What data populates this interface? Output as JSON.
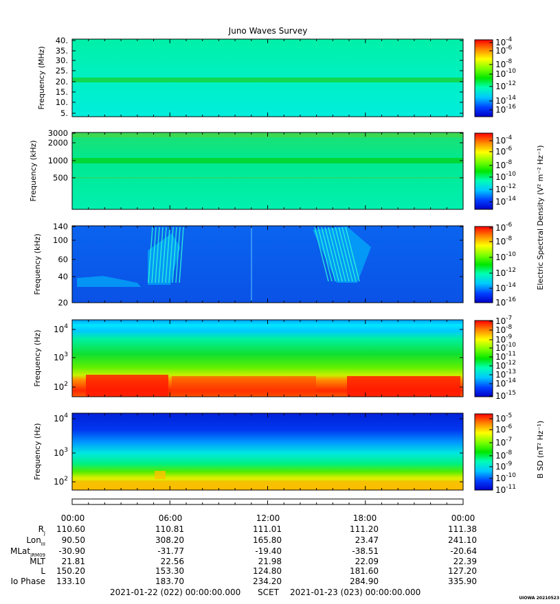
{
  "title": "Juno Waves Survey",
  "time_axis": {
    "ticks": [
      "00:00",
      "06:00",
      "12:00",
      "18:00",
      "00:00"
    ]
  },
  "ephemeris": {
    "rows": [
      {
        "label": "R",
        "sub": "J",
        "values": [
          "110.60",
          "110.81",
          "111.01",
          "111.20",
          "111.38"
        ]
      },
      {
        "label": "Lon",
        "sub": "III",
        "values": [
          "90.50",
          "308.20",
          "165.80",
          "23.47",
          "241.10"
        ]
      },
      {
        "label": "MLat",
        "sub": "JRM09",
        "values": [
          "-30.90",
          "-31.77",
          "-19.40",
          "-38.51",
          "-20.64"
        ]
      },
      {
        "label": "MLT",
        "sub": "",
        "values": [
          "21.81",
          "22.56",
          "21.98",
          "22.09",
          "22.39"
        ]
      },
      {
        "label": "L",
        "sub": "",
        "values": [
          "150.20",
          "153.30",
          "124.80",
          "181.60",
          "127.20"
        ]
      },
      {
        "label": "Io Phase",
        "sub": "",
        "values": [
          "133.10",
          "183.70",
          "234.20",
          "284.90",
          "335.90"
        ]
      }
    ]
  },
  "footer": {
    "start": "2021-01-22 (022) 00:00:00.000",
    "scet": "SCET",
    "end": "2021-01-23 (023) 00:00:00.000",
    "stamp": "UIOWA 20210523"
  },
  "colorbar_labels": {
    "electric": "Electric Spectral Density (V² m⁻² Hz⁻¹)",
    "magnetic": "B SD (nT² Hz⁻¹)"
  },
  "chart_data": [
    {
      "type": "heatmap",
      "ylabel": "Frequency (MHz)",
      "y_ticks": [
        "40.",
        "35.",
        "30.",
        "25.",
        "20.",
        "15.",
        "10.",
        "5."
      ],
      "y_tick_values": [
        40,
        35,
        30,
        25,
        20,
        15,
        10,
        5
      ],
      "ylim": [
        3,
        41
      ],
      "colorbar": {
        "ticks": [
          "-4",
          "-6",
          "-8",
          "-10",
          "-12",
          "-14",
          "-16"
        ],
        "exponents": [
          -4,
          -6,
          -8,
          -10,
          -12,
          -14,
          -16
        ],
        "range": [
          -17,
          -4
        ],
        "base": "10"
      },
      "feature": "uniform background with enhanced band near 21 MHz"
    },
    {
      "type": "heatmap",
      "ylabel": "Frequency (kHz)",
      "y_ticks": [
        "3000",
        "2000",
        "1000",
        "500"
      ],
      "y_tick_values": [
        3000,
        2000,
        1000,
        500
      ],
      "yscale": "log",
      "colorbar": {
        "ticks": [
          "-4",
          "-6",
          "-8",
          "-10",
          "-12",
          "-14"
        ],
        "exponents": [
          -4,
          -6,
          -8,
          -10,
          -12,
          -14
        ],
        "range": [
          -15,
          -3.4
        ],
        "base": "10"
      },
      "feature": "uniform background with enhanced band near 1000 kHz"
    },
    {
      "type": "heatmap",
      "ylabel": "Frequency (kHz)",
      "y_ticks": [
        "140",
        "100",
        "60",
        "40",
        "20"
      ],
      "y_tick_values": [
        140,
        100,
        60,
        40,
        20
      ],
      "yscale": "log",
      "colorbar": {
        "ticks": [
          "-6",
          "-8",
          "-10",
          "-12",
          "-14",
          "-16"
        ],
        "exponents": [
          -6,
          -8,
          -10,
          -12,
          -14,
          -16
        ],
        "range": [
          -17,
          -5.8
        ],
        "base": "10"
      },
      "feature": "emission bursts near 05:30 and 17:00 UT"
    },
    {
      "type": "heatmap",
      "ylabel": "Frequency (Hz)",
      "y_ticks": [
        "4",
        "3",
        "2"
      ],
      "y_tick_values": [
        10000,
        1000,
        100
      ],
      "yscale": "log",
      "colorbar": {
        "ticks": [
          "-7",
          "-8",
          "-9",
          "-10",
          "-11",
          "-12",
          "-13",
          "-14",
          "-15"
        ],
        "exponents": [
          -7,
          -8,
          -9,
          -10,
          -11,
          -12,
          -13,
          -14,
          -15
        ],
        "range": [
          -15,
          -7
        ],
        "base": "10"
      },
      "feature": "intense emission below ~300 Hz"
    },
    {
      "type": "heatmap",
      "ylabel": "Frequency (Hz)",
      "y_ticks": [
        "4",
        "3",
        "2"
      ],
      "y_tick_values": [
        10000,
        1000,
        100
      ],
      "yscale": "log",
      "colorbar": {
        "ticks": [
          "-5",
          "-6",
          "-7",
          "-8",
          "-9",
          "-10",
          "-11"
        ],
        "exponents": [
          -5,
          -6,
          -7,
          -8,
          -9,
          -10,
          -11
        ],
        "range": [
          -11,
          -4.5
        ],
        "base": "10"
      },
      "feature": "magnetic spectral density, intense below ~200 Hz"
    }
  ]
}
